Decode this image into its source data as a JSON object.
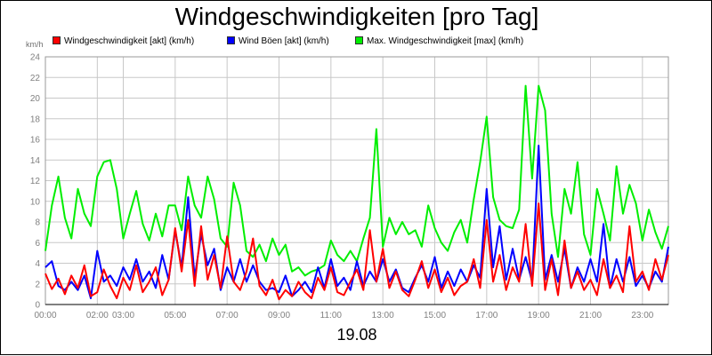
{
  "chart_data": {
    "type": "line",
    "title": "Windgeschwindigkeiten [pro Tag]",
    "xlabel": "19.08",
    "yunit": "km/h",
    "ylim": [
      0,
      24
    ],
    "yticks": [
      0,
      2,
      4,
      6,
      8,
      10,
      12,
      14,
      16,
      18,
      20,
      22,
      24
    ],
    "xlim_hours": [
      0,
      24
    ],
    "xticks": [
      {
        "label": "00:00",
        "h": 0
      },
      {
        "label": "02:00",
        "h": 2
      },
      {
        "label": "03:00",
        "h": 3
      },
      {
        "label": "05:00",
        "h": 5
      },
      {
        "label": "07:00",
        "h": 7
      },
      {
        "label": "09:00",
        "h": 9
      },
      {
        "label": "11:00",
        "h": 11
      },
      {
        "label": "13:00",
        "h": 13
      },
      {
        "label": "15:00",
        "h": 15
      },
      {
        "label": "17:00",
        "h": 17
      },
      {
        "label": "19:00",
        "h": 19
      },
      {
        "label": "21:00",
        "h": 21
      },
      {
        "label": "23:00",
        "h": 23
      }
    ],
    "grid": true,
    "legend_position": "top",
    "x_hours": [
      0,
      0.25,
      0.5,
      0.75,
      1,
      1.25,
      1.5,
      1.75,
      2,
      2.25,
      2.5,
      2.75,
      3,
      3.25,
      3.5,
      3.75,
      4,
      4.25,
      4.5,
      4.75,
      5,
      5.25,
      5.5,
      5.75,
      6,
      6.25,
      6.5,
      6.75,
      7,
      7.25,
      7.5,
      7.75,
      8,
      8.25,
      8.5,
      8.75,
      9,
      9.25,
      9.5,
      9.75,
      10,
      10.25,
      10.5,
      10.75,
      11,
      11.25,
      11.5,
      11.75,
      12,
      12.25,
      12.5,
      12.75,
      13,
      13.25,
      13.5,
      13.75,
      14,
      14.25,
      14.5,
      14.75,
      15,
      15.25,
      15.5,
      15.75,
      16,
      16.25,
      16.5,
      16.75,
      17,
      17.25,
      17.5,
      17.75,
      18,
      18.25,
      18.5,
      18.75,
      19,
      19.25,
      19.5,
      19.75,
      20,
      20.25,
      20.5,
      20.75,
      21,
      21.25,
      21.5,
      21.75,
      22,
      22.25,
      22.5,
      22.75,
      23,
      23.25,
      23.5,
      23.75,
      24
    ],
    "series": [
      {
        "name": "Windgeschwindigkeit [akt] (km/h)",
        "color": "#ff0000",
        "values": [
          3,
          1.5,
          2.5,
          1,
          2.8,
          1.6,
          3.8,
          0.8,
          1.2,
          3.4,
          1.8,
          0.6,
          2.6,
          1.4,
          3.8,
          1.2,
          2.2,
          3.6,
          0.9,
          2.4,
          7.4,
          3.2,
          8.2,
          1.8,
          7.6,
          2.4,
          4.8,
          1.6,
          6.6,
          2.2,
          1.4,
          3.2,
          6.4,
          1.8,
          0.9,
          2.4,
          0.5,
          1.4,
          0.8,
          2.2,
          1.2,
          0.6,
          2.6,
          1.4,
          3.6,
          1.2,
          0.9,
          2.2,
          3.4,
          1.4,
          7.2,
          2.2,
          5.4,
          1.6,
          3.2,
          1.4,
          0.8,
          2.4,
          4.2,
          1.6,
          3.4,
          1.2,
          2.6,
          0.9,
          1.8,
          2.2,
          4.4,
          1.6,
          8.2,
          2.2,
          4.8,
          1.4,
          3.6,
          2.2,
          7.8,
          1.8,
          9.8,
          1.4,
          4.4,
          0.9,
          6.2,
          1.6,
          3.2,
          1.4,
          2.4,
          0.9,
          4.4,
          1.6,
          2.8,
          1.2,
          7.6,
          2.2,
          3.2,
          1.4,
          4.4,
          2.4,
          4.8
        ]
      },
      {
        "name": "Wind Böen [akt] (km/h)",
        "color": "#0000ff",
        "values": [
          3.6,
          4.2,
          1.8,
          1.4,
          2.2,
          1.4,
          2.8,
          0.6,
          5.2,
          2.2,
          2.8,
          1.8,
          3.6,
          2.4,
          4.4,
          2.2,
          3.2,
          1.6,
          4.8,
          2.4,
          7.2,
          3.6,
          10.4,
          2.6,
          6.8,
          3.8,
          5.4,
          1.4,
          3.6,
          2.2,
          4.4,
          2.2,
          3.8,
          2.2,
          1.4,
          1.6,
          1.2,
          2.8,
          0.8,
          1.4,
          2.2,
          1.2,
          3.6,
          1.6,
          4.4,
          1.8,
          2.6,
          1.4,
          4.2,
          1.8,
          3.2,
          2.2,
          4.4,
          2.2,
          3.4,
          1.6,
          1.2,
          2.6,
          3.8,
          2.2,
          4.6,
          1.6,
          3.2,
          1.8,
          3.4,
          2.2,
          3.8,
          2.6,
          11.2,
          3.6,
          7.6,
          2.4,
          5.4,
          2.4,
          4.6,
          2.2,
          15.4,
          2.4,
          4.8,
          2.2,
          5.4,
          1.6,
          3.6,
          2.2,
          4.4,
          2.2,
          7.8,
          1.6,
          4.4,
          2.2,
          4.6,
          1.8,
          2.8,
          1.6,
          3.2,
          2.2,
          5.6
        ]
      },
      {
        "name": "Max. Windgeschwindigkeit [max] (km/h)",
        "color": "#00ee00",
        "values": [
          5.2,
          9.6,
          12.4,
          8.4,
          6.4,
          11.2,
          8.8,
          7.6,
          12.4,
          13.8,
          14,
          11.2,
          6.4,
          8.8,
          11,
          7.8,
          6.2,
          8.8,
          6.6,
          9.6,
          9.6,
          7.2,
          12.4,
          9.6,
          8.4,
          12.4,
          10.2,
          6.4,
          5.6,
          11.8,
          9.6,
          5.2,
          4.6,
          5.8,
          4.2,
          6.4,
          4.8,
          5.8,
          3.2,
          3.6,
          2.8,
          3.2,
          3.4,
          3.8,
          6.2,
          4.8,
          4.2,
          5.2,
          4.2,
          6.4,
          8.4,
          17,
          5.6,
          8.4,
          6.8,
          8,
          6.8,
          7.2,
          5.6,
          9.6,
          7.4,
          6,
          5.2,
          7,
          8.2,
          6,
          10.2,
          13.8,
          18.2,
          10.4,
          8.2,
          7.6,
          7.4,
          9.2,
          21.2,
          12.2,
          21.2,
          18.8,
          8.8,
          4.6,
          11.2,
          8.8,
          13.8,
          6.8,
          4.8,
          11.2,
          8.8,
          6.2,
          13.4,
          8.8,
          11.6,
          9.8,
          6.2,
          9.2,
          7,
          5.4,
          7.6
        ]
      }
    ]
  }
}
